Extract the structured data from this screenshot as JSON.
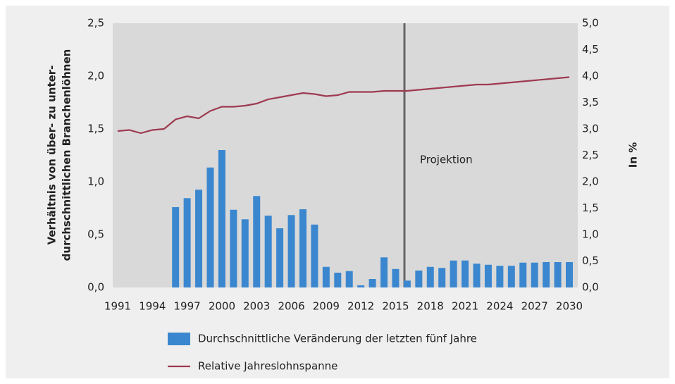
{
  "chart_data": {
    "type": "bar-line",
    "ylabel": [
      "Verhältnis von über- zu unter-",
      "durchschnittlichen Branchenlöhnen"
    ],
    "y2label": "In %",
    "annotation": "Projektion",
    "categories": [
      "1991",
      null,
      null,
      "1994",
      null,
      null,
      "1997",
      null,
      null,
      "2000",
      null,
      null,
      "2003",
      null,
      null,
      "2006",
      null,
      null,
      "2009",
      null,
      null,
      "2012",
      null,
      null,
      "2015",
      null,
      null,
      "2018",
      null,
      null,
      "2021",
      null,
      null,
      "2024",
      null,
      null,
      "2027",
      null,
      null,
      "2030"
    ],
    "series": [
      {
        "name": "Durchschnittliche Veränderung der letzten fünf Jahre",
        "type": "bar",
        "axis": "y2",
        "color": "#3b87cf",
        "values": [
          null,
          null,
          null,
          null,
          null,
          1.52,
          1.69,
          1.85,
          2.27,
          2.6,
          1.47,
          1.29,
          1.73,
          1.36,
          1.12,
          1.37,
          1.48,
          1.19,
          0.39,
          0.28,
          0.31,
          0.04,
          0.16,
          0.57,
          0.35,
          0.13,
          0.32,
          0.39,
          0.37,
          0.51,
          0.51,
          0.45,
          0.43,
          0.41,
          0.41,
          0.47,
          0.47,
          0.48,
          0.48,
          0.48
        ]
      },
      {
        "name": "Relative Jahreslohnspanne",
        "type": "line",
        "axis": "y",
        "color": "#9e3a50",
        "values": [
          1.48,
          1.49,
          1.46,
          1.49,
          1.5,
          1.59,
          1.62,
          1.6,
          1.67,
          1.71,
          1.71,
          1.72,
          1.74,
          1.78,
          1.8,
          1.82,
          1.84,
          1.83,
          1.81,
          1.82,
          1.85,
          1.85,
          1.85,
          1.86,
          1.86,
          1.86,
          1.87,
          1.88,
          1.89,
          1.9,
          1.91,
          1.92,
          1.92,
          1.93,
          1.94,
          1.95,
          1.96,
          1.97,
          1.98,
          1.99
        ]
      }
    ],
    "ylim": [
      0,
      2.5
    ],
    "yticks": [
      {
        "value": 0,
        "label": "0,0"
      },
      {
        "value": 0.5,
        "label": "0,5"
      },
      {
        "value": 1,
        "label": "1,0"
      },
      {
        "value": 1.5,
        "label": "1,5"
      },
      {
        "value": 2,
        "label": "2,0"
      },
      {
        "value": 2.5,
        "label": "2,5"
      }
    ],
    "y2lim": [
      0,
      5
    ],
    "y2ticks": [
      {
        "value": 0,
        "label": "0,0"
      },
      {
        "value": 0.5,
        "label": "0,5"
      },
      {
        "value": 1,
        "label": "1,0"
      },
      {
        "value": 1.5,
        "label": "1,5"
      },
      {
        "value": 2,
        "label": "2,0"
      },
      {
        "value": 2.5,
        "label": "2,5"
      },
      {
        "value": 3,
        "label": "3,0"
      },
      {
        "value": 3.5,
        "label": "3,5"
      },
      {
        "value": 4,
        "label": "4,0"
      },
      {
        "value": 4.5,
        "label": "4,5"
      },
      {
        "value": 5,
        "label": "5,0"
      }
    ],
    "grid": false,
    "legend": "bottom"
  }
}
